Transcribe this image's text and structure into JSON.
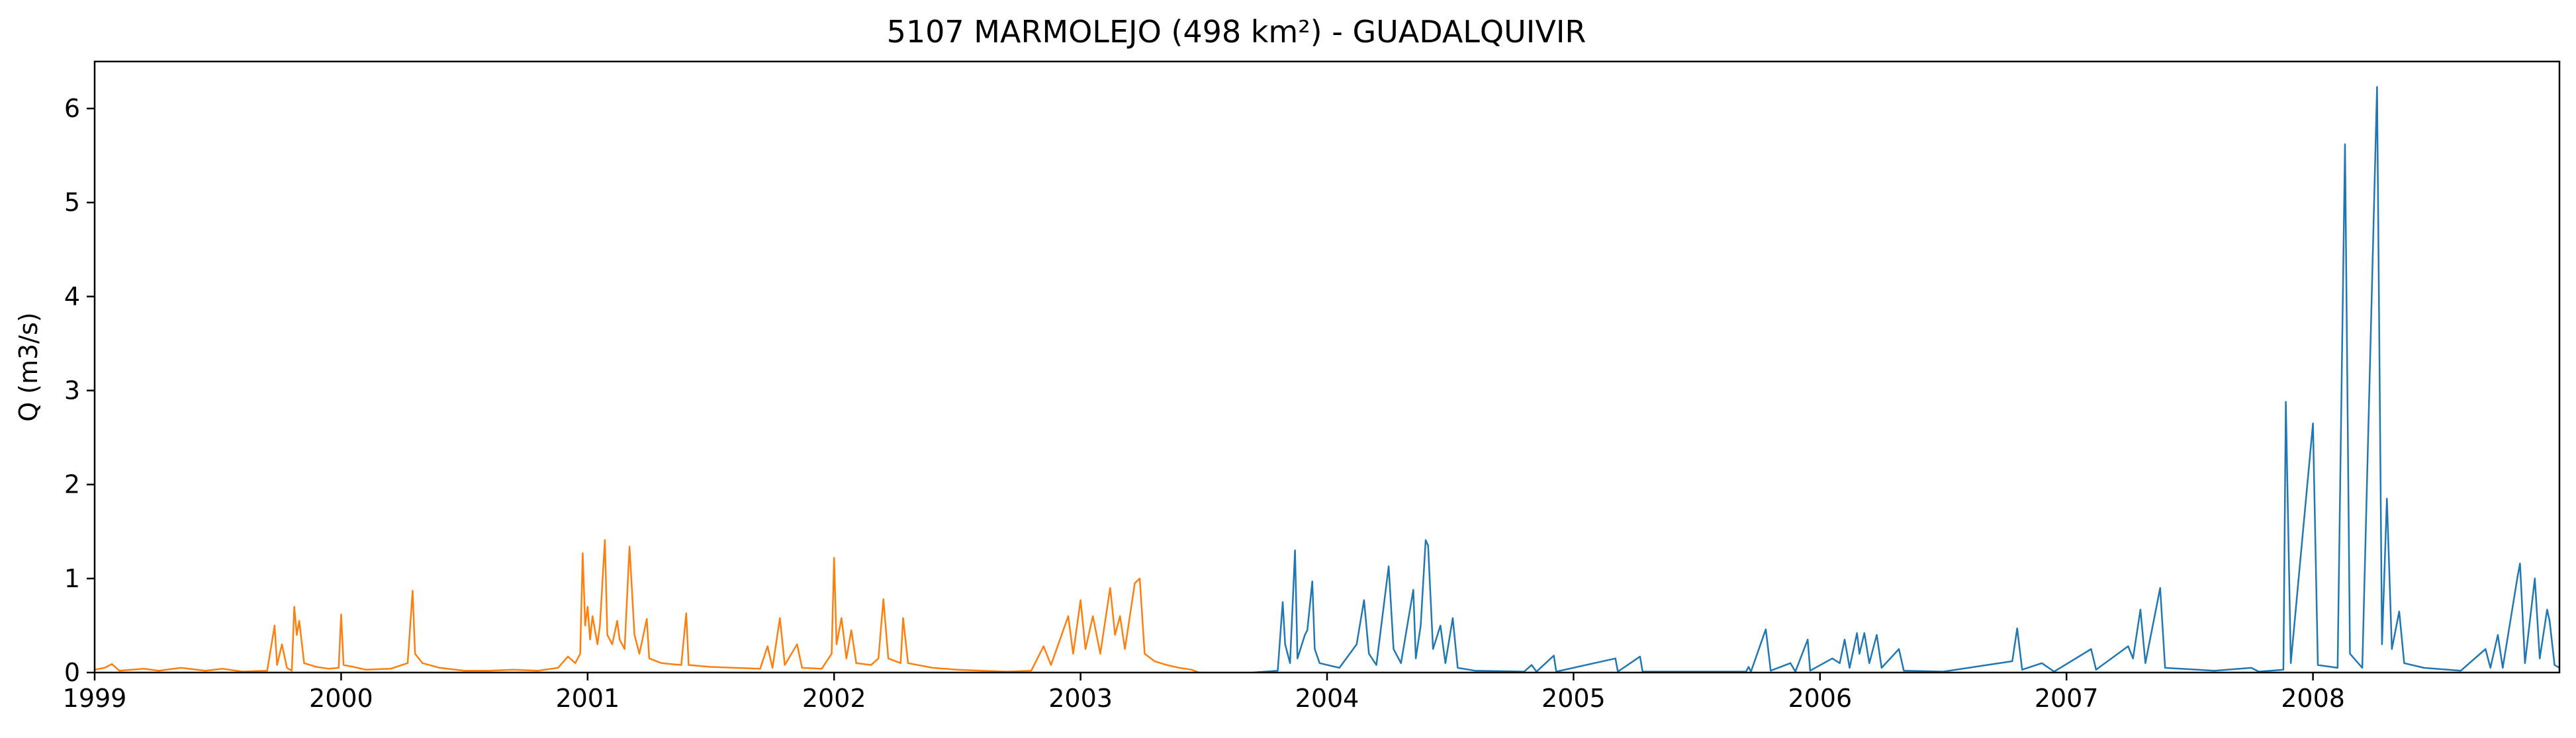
{
  "chart_data": {
    "type": "line",
    "title": "5107 MARMOLEJO (498 km²) - GUADALQUIVIR",
    "xlabel": "",
    "ylabel": "Q (m3/s)",
    "xlim": [
      1999.0,
      2009.0
    ],
    "ylim": [
      0,
      6.5
    ],
    "x_ticks": [
      1999,
      2000,
      2001,
      2002,
      2003,
      2004,
      2005,
      2006,
      2007,
      2008
    ],
    "y_ticks": [
      0,
      1,
      2,
      3,
      4,
      5,
      6
    ],
    "grid": false,
    "series": [
      {
        "color": "#ff7f0e",
        "points": [
          [
            1999.0,
            0.03
          ],
          [
            1999.04,
            0.05
          ],
          [
            1999.07,
            0.09
          ],
          [
            1999.1,
            0.02
          ],
          [
            1999.2,
            0.04
          ],
          [
            1999.26,
            0.02
          ],
          [
            1999.35,
            0.05
          ],
          [
            1999.45,
            0.02
          ],
          [
            1999.52,
            0.04
          ],
          [
            1999.6,
            0.01
          ],
          [
            1999.7,
            0.02
          ],
          [
            1999.73,
            0.5
          ],
          [
            1999.74,
            0.08
          ],
          [
            1999.76,
            0.3
          ],
          [
            1999.78,
            0.05
          ],
          [
            1999.8,
            0.02
          ],
          [
            1999.81,
            0.7
          ],
          [
            1999.82,
            0.4
          ],
          [
            1999.83,
            0.55
          ],
          [
            1999.85,
            0.1
          ],
          [
            1999.9,
            0.06
          ],
          [
            1999.95,
            0.04
          ],
          [
            1999.99,
            0.05
          ],
          [
            2000.0,
            0.62
          ],
          [
            2000.01,
            0.08
          ],
          [
            2000.05,
            0.06
          ],
          [
            2000.1,
            0.03
          ],
          [
            2000.2,
            0.04
          ],
          [
            2000.27,
            0.1
          ],
          [
            2000.29,
            0.87
          ],
          [
            2000.3,
            0.2
          ],
          [
            2000.33,
            0.1
          ],
          [
            2000.4,
            0.05
          ],
          [
            2000.5,
            0.02
          ],
          [
            2000.6,
            0.02
          ],
          [
            2000.7,
            0.03
          ],
          [
            2000.8,
            0.02
          ],
          [
            2000.88,
            0.05
          ],
          [
            2000.92,
            0.17
          ],
          [
            2000.95,
            0.1
          ],
          [
            2000.97,
            0.2
          ],
          [
            2000.98,
            1.27
          ],
          [
            2000.99,
            0.5
          ],
          [
            2001.0,
            0.7
          ],
          [
            2001.01,
            0.35
          ],
          [
            2001.02,
            0.6
          ],
          [
            2001.04,
            0.3
          ],
          [
            2001.05,
            0.5
          ],
          [
            2001.07,
            1.41
          ],
          [
            2001.08,
            0.4
          ],
          [
            2001.1,
            0.3
          ],
          [
            2001.12,
            0.55
          ],
          [
            2001.13,
            0.35
          ],
          [
            2001.15,
            0.25
          ],
          [
            2001.17,
            1.34
          ],
          [
            2001.19,
            0.4
          ],
          [
            2001.21,
            0.2
          ],
          [
            2001.24,
            0.57
          ],
          [
            2001.25,
            0.15
          ],
          [
            2001.3,
            0.1
          ],
          [
            2001.38,
            0.08
          ],
          [
            2001.4,
            0.63
          ],
          [
            2001.41,
            0.08
          ],
          [
            2001.5,
            0.06
          ],
          [
            2001.6,
            0.05
          ],
          [
            2001.7,
            0.04
          ],
          [
            2001.73,
            0.28
          ],
          [
            2001.75,
            0.05
          ],
          [
            2001.78,
            0.58
          ],
          [
            2001.8,
            0.08
          ],
          [
            2001.85,
            0.3
          ],
          [
            2001.87,
            0.05
          ],
          [
            2001.95,
            0.04
          ],
          [
            2001.99,
            0.2
          ],
          [
            2002.0,
            1.22
          ],
          [
            2002.01,
            0.3
          ],
          [
            2002.03,
            0.58
          ],
          [
            2002.05,
            0.15
          ],
          [
            2002.07,
            0.45
          ],
          [
            2002.09,
            0.1
          ],
          [
            2002.15,
            0.08
          ],
          [
            2002.18,
            0.15
          ],
          [
            2002.2,
            0.78
          ],
          [
            2002.22,
            0.15
          ],
          [
            2002.27,
            0.1
          ],
          [
            2002.28,
            0.58
          ],
          [
            2002.3,
            0.1
          ],
          [
            2002.4,
            0.05
          ],
          [
            2002.5,
            0.03
          ],
          [
            2002.6,
            0.02
          ],
          [
            2002.7,
            0.01
          ],
          [
            2002.8,
            0.02
          ],
          [
            2002.85,
            0.28
          ],
          [
            2002.88,
            0.08
          ],
          [
            2002.95,
            0.6
          ],
          [
            2002.97,
            0.2
          ],
          [
            2003.0,
            0.77
          ],
          [
            2003.02,
            0.25
          ],
          [
            2003.05,
            0.6
          ],
          [
            2003.08,
            0.2
          ],
          [
            2003.12,
            0.9
          ],
          [
            2003.14,
            0.4
          ],
          [
            2003.16,
            0.6
          ],
          [
            2003.18,
            0.25
          ],
          [
            2003.22,
            0.95
          ],
          [
            2003.24,
            1.0
          ],
          [
            2003.26,
            0.2
          ],
          [
            2003.3,
            0.12
          ],
          [
            2003.35,
            0.08
          ],
          [
            2003.4,
            0.05
          ],
          [
            2003.45,
            0.03
          ],
          [
            2003.48,
            0.0
          ]
        ]
      },
      {
        "color": "#1f77b4",
        "points": [
          [
            2003.7,
            0.0
          ],
          [
            2003.8,
            0.02
          ],
          [
            2003.82,
            0.75
          ],
          [
            2003.83,
            0.3
          ],
          [
            2003.85,
            0.1
          ],
          [
            2003.87,
            1.3
          ],
          [
            2003.88,
            0.15
          ],
          [
            2003.91,
            0.4
          ],
          [
            2003.92,
            0.45
          ],
          [
            2003.94,
            0.97
          ],
          [
            2003.95,
            0.25
          ],
          [
            2003.97,
            0.1
          ],
          [
            2004.05,
            0.05
          ],
          [
            2004.12,
            0.3
          ],
          [
            2004.15,
            0.77
          ],
          [
            2004.17,
            0.2
          ],
          [
            2004.2,
            0.08
          ],
          [
            2004.25,
            1.13
          ],
          [
            2004.27,
            0.25
          ],
          [
            2004.3,
            0.1
          ],
          [
            2004.35,
            0.88
          ],
          [
            2004.36,
            0.15
          ],
          [
            2004.38,
            0.5
          ],
          [
            2004.4,
            1.41
          ],
          [
            2004.41,
            1.35
          ],
          [
            2004.43,
            0.25
          ],
          [
            2004.46,
            0.5
          ],
          [
            2004.48,
            0.1
          ],
          [
            2004.51,
            0.58
          ],
          [
            2004.53,
            0.05
          ],
          [
            2004.6,
            0.02
          ],
          [
            2004.8,
            0.01
          ],
          [
            2004.83,
            0.08
          ],
          [
            2004.85,
            0.01
          ],
          [
            2004.92,
            0.18
          ],
          [
            2004.93,
            0.01
          ],
          [
            2005.17,
            0.15
          ],
          [
            2005.18,
            0.01
          ],
          [
            2005.27,
            0.17
          ],
          [
            2005.28,
            0.01
          ],
          [
            2005.7,
            0.01
          ],
          [
            2005.71,
            0.06
          ],
          [
            2005.72,
            0.01
          ],
          [
            2005.78,
            0.46
          ],
          [
            2005.8,
            0.02
          ],
          [
            2005.88,
            0.1
          ],
          [
            2005.9,
            0.01
          ],
          [
            2005.95,
            0.35
          ],
          [
            2005.96,
            0.02
          ],
          [
            2006.05,
            0.15
          ],
          [
            2006.08,
            0.1
          ],
          [
            2006.1,
            0.35
          ],
          [
            2006.12,
            0.05
          ],
          [
            2006.15,
            0.42
          ],
          [
            2006.16,
            0.2
          ],
          [
            2006.18,
            0.42
          ],
          [
            2006.2,
            0.1
          ],
          [
            2006.23,
            0.4
          ],
          [
            2006.25,
            0.05
          ],
          [
            2006.32,
            0.25
          ],
          [
            2006.34,
            0.02
          ],
          [
            2006.5,
            0.01
          ],
          [
            2006.78,
            0.12
          ],
          [
            2006.8,
            0.47
          ],
          [
            2006.82,
            0.03
          ],
          [
            2006.9,
            0.1
          ],
          [
            2006.95,
            0.01
          ],
          [
            2007.1,
            0.25
          ],
          [
            2007.12,
            0.03
          ],
          [
            2007.25,
            0.28
          ],
          [
            2007.27,
            0.15
          ],
          [
            2007.3,
            0.67
          ],
          [
            2007.32,
            0.1
          ],
          [
            2007.38,
            0.9
          ],
          [
            2007.4,
            0.05
          ],
          [
            2007.6,
            0.02
          ],
          [
            2007.75,
            0.05
          ],
          [
            2007.78,
            0.01
          ],
          [
            2007.88,
            0.03
          ],
          [
            2007.89,
            2.88
          ],
          [
            2007.91,
            0.1
          ],
          [
            2008.0,
            2.65
          ],
          [
            2008.02,
            0.08
          ],
          [
            2008.1,
            0.05
          ],
          [
            2008.13,
            5.62
          ],
          [
            2008.15,
            0.2
          ],
          [
            2008.2,
            0.05
          ],
          [
            2008.26,
            6.23
          ],
          [
            2008.28,
            0.3
          ],
          [
            2008.3,
            1.85
          ],
          [
            2008.32,
            0.25
          ],
          [
            2008.35,
            0.65
          ],
          [
            2008.37,
            0.1
          ],
          [
            2008.45,
            0.05
          ],
          [
            2008.6,
            0.02
          ],
          [
            2008.7,
            0.25
          ],
          [
            2008.72,
            0.05
          ],
          [
            2008.75,
            0.4
          ],
          [
            2008.77,
            0.05
          ],
          [
            2008.83,
            1.02
          ],
          [
            2008.84,
            1.16
          ],
          [
            2008.86,
            0.1
          ],
          [
            2008.9,
            1.0
          ],
          [
            2008.92,
            0.15
          ],
          [
            2008.95,
            0.67
          ],
          [
            2008.96,
            0.55
          ],
          [
            2008.98,
            0.08
          ],
          [
            2009.0,
            0.05
          ]
        ]
      }
    ]
  }
}
